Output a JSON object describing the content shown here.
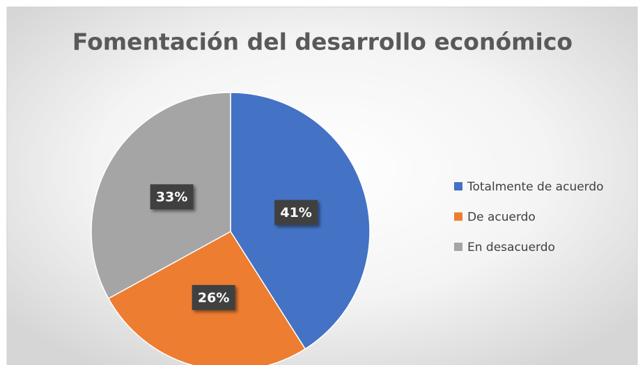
{
  "chart_data": {
    "type": "pie",
    "title": "Fomentación del desarrollo económico",
    "categories": [
      "Totalmente de acuerdo",
      "De acuerdo",
      "En desacuerdo"
    ],
    "values": [
      41,
      26,
      33
    ],
    "value_labels": [
      "41%",
      "26%",
      "33%"
    ],
    "colors": [
      "#4472c4",
      "#ed7d31",
      "#a5a5a5"
    ],
    "legend": "right"
  }
}
